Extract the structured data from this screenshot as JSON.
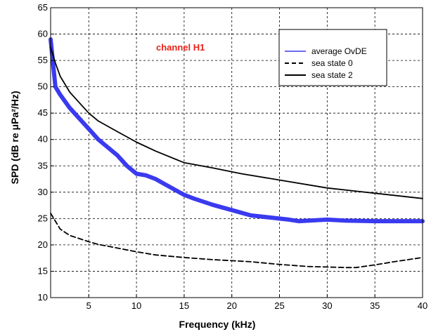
{
  "chart_data": {
    "type": "line",
    "xlabel": "Frequency (kHz)",
    "ylabel": "SPD (dB re μPa²/Hz)",
    "xlim": [
      1,
      40
    ],
    "ylim": [
      10,
      65
    ],
    "xticks": [
      5,
      10,
      15,
      20,
      25,
      30,
      35,
      40
    ],
    "yticks": [
      10,
      15,
      20,
      25,
      30,
      35,
      40,
      45,
      50,
      55,
      60,
      65
    ],
    "grid": true,
    "legend_position": "top-right",
    "annotation": {
      "text": "channel H1",
      "color": "#e8221b"
    },
    "series": [
      {
        "name": "average OvDE",
        "color": "#3a3af0",
        "style": "solid",
        "x": [
          1,
          1.5,
          2,
          3,
          4,
          5,
          6,
          7,
          8,
          9,
          10,
          11,
          12,
          13,
          14,
          15,
          16,
          18,
          20,
          22,
          24,
          26,
          27,
          28,
          30,
          32,
          35,
          40
        ],
        "y": [
          59,
          50,
          48.5,
          46,
          44,
          42,
          40,
          38.5,
          37,
          35,
          33.5,
          33.2,
          32.5,
          31.5,
          30.5,
          29.5,
          28.8,
          27.6,
          26.6,
          25.6,
          25.2,
          24.8,
          24.5,
          24.6,
          24.8,
          24.6,
          24.5,
          24.5
        ]
      },
      {
        "name": "sea state 0",
        "color": "#000000",
        "style": "dashed",
        "x": [
          1,
          1.5,
          2,
          3,
          4,
          5,
          6,
          8,
          10,
          12,
          15,
          18,
          20,
          22,
          25,
          28,
          30,
          32,
          33,
          35,
          37,
          40
        ],
        "y": [
          26,
          24.5,
          23,
          21.8,
          21.2,
          20.6,
          20.1,
          19.4,
          18.7,
          18.1,
          17.6,
          17.2,
          17,
          16.8,
          16.3,
          15.9,
          15.8,
          15.7,
          15.7,
          16.2,
          16.8,
          17.6
        ]
      },
      {
        "name": "sea state 2",
        "color": "#000000",
        "style": "solid",
        "x": [
          1,
          1.5,
          2,
          3,
          4,
          5,
          6,
          8,
          10,
          12,
          15,
          18,
          21,
          25,
          30,
          35,
          40
        ],
        "y": [
          57.5,
          54.5,
          52,
          49,
          47,
          45,
          43.5,
          41.5,
          39.5,
          37.8,
          35.6,
          34.6,
          33.5,
          32.3,
          30.8,
          29.8,
          28.8
        ]
      }
    ]
  }
}
